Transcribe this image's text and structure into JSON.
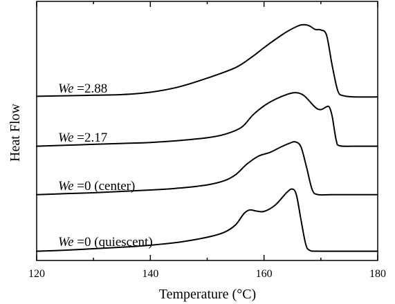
{
  "chart_data": {
    "type": "line",
    "title": "",
    "xlabel": "Temperature (°C)",
    "ylabel": "Heat Flow",
    "xlim": [
      120,
      180
    ],
    "x_ticks": [
      120,
      140,
      160,
      180
    ],
    "y_ticks_shown": false,
    "grid": false,
    "legend": "none (series labelled inline above each curve)",
    "series": [
      {
        "name": "We =2.88",
        "name_italic": "We",
        "name_rest": " =2.88",
        "points": [
          [
            120,
            0.03
          ],
          [
            125,
            0.04
          ],
          [
            130,
            0.05
          ],
          [
            135,
            0.06
          ],
          [
            140,
            0.1
          ],
          [
            145,
            0.19
          ],
          [
            150,
            0.34
          ],
          [
            155,
            0.52
          ],
          [
            158,
            0.71
          ],
          [
            160,
            0.86
          ],
          [
            162,
            1.0
          ],
          [
            164,
            1.13
          ],
          [
            166,
            1.23
          ],
          [
            167,
            1.25
          ],
          [
            168,
            1.23
          ],
          [
            169,
            1.17
          ],
          [
            170,
            1.16
          ],
          [
            171,
            1.07
          ],
          [
            172,
            0.55
          ],
          [
            173,
            0.12
          ],
          [
            174,
            0.04
          ],
          [
            176,
            0.02
          ],
          [
            180,
            0.02
          ]
        ]
      },
      {
        "name": "We =2.17",
        "name_italic": "We",
        "name_rest": " =2.17",
        "points": [
          [
            120,
            0.02
          ],
          [
            125,
            0.04
          ],
          [
            130,
            0.06
          ],
          [
            135,
            0.08
          ],
          [
            140,
            0.1
          ],
          [
            145,
            0.14
          ],
          [
            150,
            0.2
          ],
          [
            153,
            0.27
          ],
          [
            156,
            0.42
          ],
          [
            158,
            0.68
          ],
          [
            160,
            0.88
          ],
          [
            162,
            1.02
          ],
          [
            164,
            1.12
          ],
          [
            165.5,
            1.16
          ],
          [
            167,
            1.1
          ],
          [
            169,
            0.85
          ],
          [
            170,
            0.8
          ],
          [
            171,
            0.86
          ],
          [
            171.5,
            0.85
          ],
          [
            172,
            0.65
          ],
          [
            172.7,
            0.15
          ],
          [
            173.3,
            0.03
          ],
          [
            176,
            0.02
          ],
          [
            180,
            0.02
          ]
        ]
      },
      {
        "name": "We =0 (center)",
        "name_italic": "We",
        "name_rest": " =0 (center)",
        "points": [
          [
            120,
            0.02
          ],
          [
            125,
            0.04
          ],
          [
            130,
            0.06
          ],
          [
            135,
            0.09
          ],
          [
            140,
            0.12
          ],
          [
            145,
            0.16
          ],
          [
            150,
            0.23
          ],
          [
            153,
            0.32
          ],
          [
            155,
            0.45
          ],
          [
            157,
            0.68
          ],
          [
            159,
            0.85
          ],
          [
            161,
            0.93
          ],
          [
            163,
            1.05
          ],
          [
            164.5,
            1.13
          ],
          [
            165.5,
            1.16
          ],
          [
            166.5,
            1.05
          ],
          [
            167.5,
            0.6
          ],
          [
            168.5,
            0.12
          ],
          [
            169.5,
            0.02
          ],
          [
            172,
            0.02
          ],
          [
            180,
            0.02
          ]
        ]
      },
      {
        "name": "We =0 (quiescent)",
        "name_italic": "We",
        "name_rest": " =0 (quiescent)",
        "points": [
          [
            120,
            0.02
          ],
          [
            125,
            0.04
          ],
          [
            130,
            0.07
          ],
          [
            135,
            0.1
          ],
          [
            140,
            0.14
          ],
          [
            145,
            0.2
          ],
          [
            150,
            0.3
          ],
          [
            153,
            0.4
          ],
          [
            155,
            0.55
          ],
          [
            156.5,
            0.78
          ],
          [
            157.5,
            0.85
          ],
          [
            158.5,
            0.83
          ],
          [
            160,
            0.82
          ],
          [
            162,
            0.95
          ],
          [
            164,
            1.2
          ],
          [
            165,
            1.27
          ],
          [
            165.7,
            1.15
          ],
          [
            166.5,
            0.65
          ],
          [
            167.3,
            0.18
          ],
          [
            168,
            0.04
          ],
          [
            170,
            0.02
          ],
          [
            180,
            0.02
          ]
        ]
      }
    ]
  }
}
